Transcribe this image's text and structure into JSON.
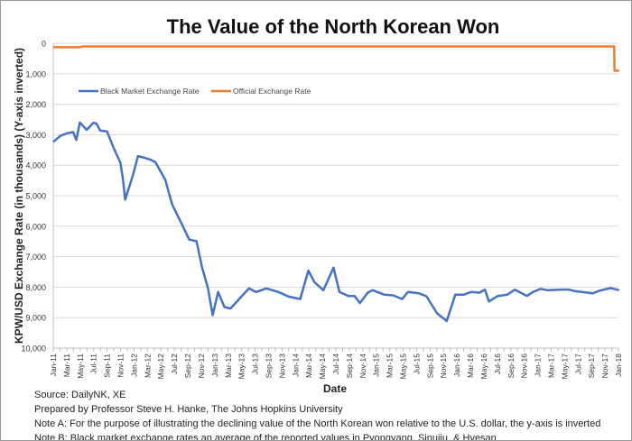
{
  "chart_data": {
    "type": "line",
    "title": "The Value of the North Korean Won",
    "xlabel": "Date",
    "ylabel": "KPW/USD Exchange Rate (in thousands)  (Y-axis inverted)",
    "y_inverted": true,
    "ylim": [
      0,
      10000
    ],
    "yticks": [
      "0",
      "1,000",
      "2,000",
      "3,000",
      "4,000",
      "5,000",
      "6,000",
      "7,000",
      "8,000",
      "9,000",
      "10,000"
    ],
    "xlim": [
      "2011-01-01",
      "2018-01-01"
    ],
    "xticks": [
      "Jan-11",
      "Mar-11",
      "May-11",
      "Jul-11",
      "Sep-11",
      "Nov-11",
      "Jan-12",
      "Mar-12",
      "May-12",
      "Jul-12",
      "Sep-12",
      "Nov-12",
      "Jan-13",
      "Mar-13",
      "May-13",
      "Jul-13",
      "Sep-13",
      "Nov-13",
      "Jan-14",
      "Mar-14",
      "May-14",
      "Jul-14",
      "Sep-14",
      "Nov-14",
      "Jan-15",
      "Mar-15",
      "May-15",
      "Jul-15",
      "Sep-15",
      "Nov-15",
      "Jan-16",
      "Mar-16",
      "May-16",
      "Jul-16",
      "Sep-16",
      "Nov-16",
      "Jan-17",
      "Mar-17",
      "May-17",
      "Jul-17",
      "Sep-17",
      "Nov-17",
      "Jan-18"
    ],
    "grid": "horizontal",
    "legend_placement": "top-left",
    "series": [
      {
        "name": "Black Market Exchange Rate",
        "color": "#4472c4",
        "points": [
          [
            "2011-01-01",
            3235
          ],
          [
            "2011-02-01",
            3040
          ],
          [
            "2011-03-01",
            2960
          ],
          [
            "2011-04-01",
            2910
          ],
          [
            "2011-04-15",
            3170
          ],
          [
            "2011-05-01",
            2600
          ],
          [
            "2011-06-01",
            2840
          ],
          [
            "2011-07-01",
            2610
          ],
          [
            "2011-07-15",
            2630
          ],
          [
            "2011-08-01",
            2860
          ],
          [
            "2011-09-01",
            2890
          ],
          [
            "2011-10-01",
            3430
          ],
          [
            "2011-11-01",
            3920
          ],
          [
            "2011-11-13",
            4510
          ],
          [
            "2011-11-22",
            5130
          ],
          [
            "2011-12-28",
            4310
          ],
          [
            "2012-01-19",
            3700
          ],
          [
            "2012-02-13",
            3745
          ],
          [
            "2012-03-16",
            3820
          ],
          [
            "2012-04-07",
            3900
          ],
          [
            "2012-04-28",
            4170
          ],
          [
            "2012-05-22",
            4480
          ],
          [
            "2012-06-22",
            5290
          ],
          [
            "2012-08-01",
            5880
          ],
          [
            "2012-09-07",
            6440
          ],
          [
            "2012-10-10",
            6490
          ],
          [
            "2012-11-04",
            7350
          ],
          [
            "2012-12-01",
            8040
          ],
          [
            "2012-12-22",
            8920
          ],
          [
            "2013-01-16",
            8160
          ],
          [
            "2013-02-13",
            8650
          ],
          [
            "2013-03-13",
            8700
          ],
          [
            "2013-04-16",
            8430
          ],
          [
            "2013-06-04",
            8040
          ],
          [
            "2013-07-07",
            8160
          ],
          [
            "2013-08-22",
            8040
          ],
          [
            "2013-10-16",
            8160
          ],
          [
            "2013-12-01",
            8310
          ],
          [
            "2014-01-22",
            8390
          ],
          [
            "2014-02-28",
            7460
          ],
          [
            "2014-03-28",
            7840
          ],
          [
            "2014-05-07",
            8100
          ],
          [
            "2014-06-22",
            7360
          ],
          [
            "2014-07-19",
            8160
          ],
          [
            "2014-08-28",
            8290
          ],
          [
            "2014-09-25",
            8290
          ],
          [
            "2014-10-19",
            8520
          ],
          [
            "2014-11-25",
            8175
          ],
          [
            "2014-12-16",
            8100
          ],
          [
            "2015-02-07",
            8250
          ],
          [
            "2015-03-19",
            8270
          ],
          [
            "2015-04-28",
            8390
          ],
          [
            "2015-05-25",
            8160
          ],
          [
            "2015-07-13",
            8200
          ],
          [
            "2015-08-16",
            8300
          ],
          [
            "2015-10-04",
            8865
          ],
          [
            "2015-11-16",
            9110
          ],
          [
            "2015-12-25",
            8250
          ],
          [
            "2016-02-01",
            8250
          ],
          [
            "2016-03-04",
            8160
          ],
          [
            "2016-04-13",
            8180
          ],
          [
            "2016-05-07",
            8080
          ],
          [
            "2016-05-25",
            8470
          ],
          [
            "2016-07-04",
            8290
          ],
          [
            "2016-08-16",
            8250
          ],
          [
            "2016-09-19",
            8080
          ],
          [
            "2016-11-13",
            8290
          ],
          [
            "2016-12-10",
            8160
          ],
          [
            "2017-01-13",
            8060
          ],
          [
            "2017-02-16",
            8100
          ],
          [
            "2017-04-16",
            8080
          ],
          [
            "2017-05-22",
            8080
          ],
          [
            "2017-06-16",
            8130
          ],
          [
            "2017-09-07",
            8200
          ],
          [
            "2017-10-10",
            8110
          ],
          [
            "2017-11-28",
            8030
          ],
          [
            "2018-01-04",
            8100
          ]
        ]
      },
      {
        "name": "Official Exchange Rate",
        "color": "#ed7d31",
        "points": [
          [
            "2011-01-01",
            130
          ],
          [
            "2011-05-01",
            130
          ],
          [
            "2011-05-15",
            105
          ],
          [
            "2017-12-13",
            105
          ],
          [
            "2017-12-14",
            900
          ],
          [
            "2018-01-04",
            900
          ]
        ]
      }
    ]
  },
  "notes": [
    "Source: DailyNK, XE",
    "Prepared by Professor Steve H. Hanke, The Johns Hopkins University",
    "Note A: For the purpose of illustrating the declining value of the North Korean won relative to the U.S. dollar, the y-axis is inverted",
    "Note B: Black market exchange rates an average of the reported values in Pyongyang, Sinuiju, & Hyesan"
  ]
}
